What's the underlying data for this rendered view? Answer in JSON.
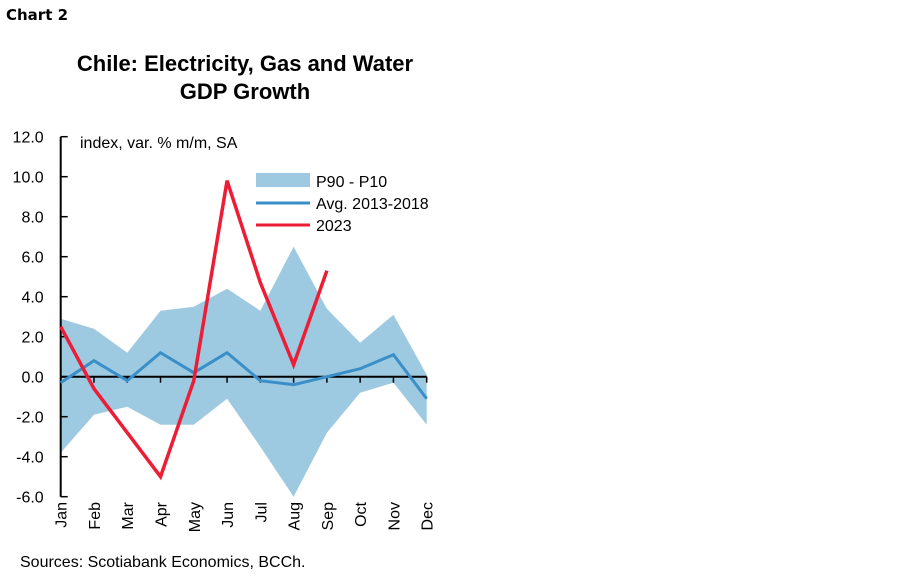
{
  "header": {
    "label": "Chart 2"
  },
  "chart_data": {
    "type": "line",
    "title": "Chile: Electricity, Gas and Water GDP Growth",
    "title_lines": [
      "Chile: Electricity, Gas and Water",
      "GDP Growth"
    ],
    "ylabel": "index, var. % m/m, SA",
    "xlabel": "",
    "categories": [
      "Jan",
      "Feb",
      "Mar",
      "Apr",
      "May",
      "Jun",
      "Jul",
      "Aug",
      "Sep",
      "Oct",
      "Nov",
      "Dec"
    ],
    "ylim": [
      -6,
      12
    ],
    "yticks": [
      "12.0",
      "10.0",
      "8.0",
      "6.0",
      "4.0",
      "2.0",
      "0.0",
      "-2.0",
      "-4.0",
      "-6.0"
    ],
    "grid": false,
    "legend_position": "top-right",
    "band": {
      "name": "P90 - P10",
      "color": "#9ecae1",
      "upper": [
        2.9,
        2.4,
        1.2,
        3.3,
        3.5,
        4.4,
        3.3,
        6.5,
        3.4,
        1.7,
        3.1,
        0.1
      ],
      "lower": [
        -3.8,
        -1.9,
        -1.5,
        -2.4,
        -2.4,
        -1.1,
        -3.5,
        -6.0,
        -2.8,
        -0.8,
        -0.3,
        -2.4
      ]
    },
    "series": [
      {
        "name": "Avg. 2013-2018",
        "color": "#3a8fc8",
        "values": [
          -0.3,
          0.8,
          -0.2,
          1.2,
          0.2,
          1.2,
          -0.2,
          -0.4,
          0.0,
          0.4,
          1.1,
          -1.1
        ]
      },
      {
        "name": "2023",
        "color": "#ee1d36",
        "values": [
          2.5,
          -0.6,
          -2.8,
          -5.0,
          -0.2,
          9.8,
          4.7,
          0.6,
          5.3,
          null,
          null,
          null
        ]
      }
    ]
  },
  "footer": {
    "source": "Sources: Scotiabank Economics, BCCh."
  }
}
